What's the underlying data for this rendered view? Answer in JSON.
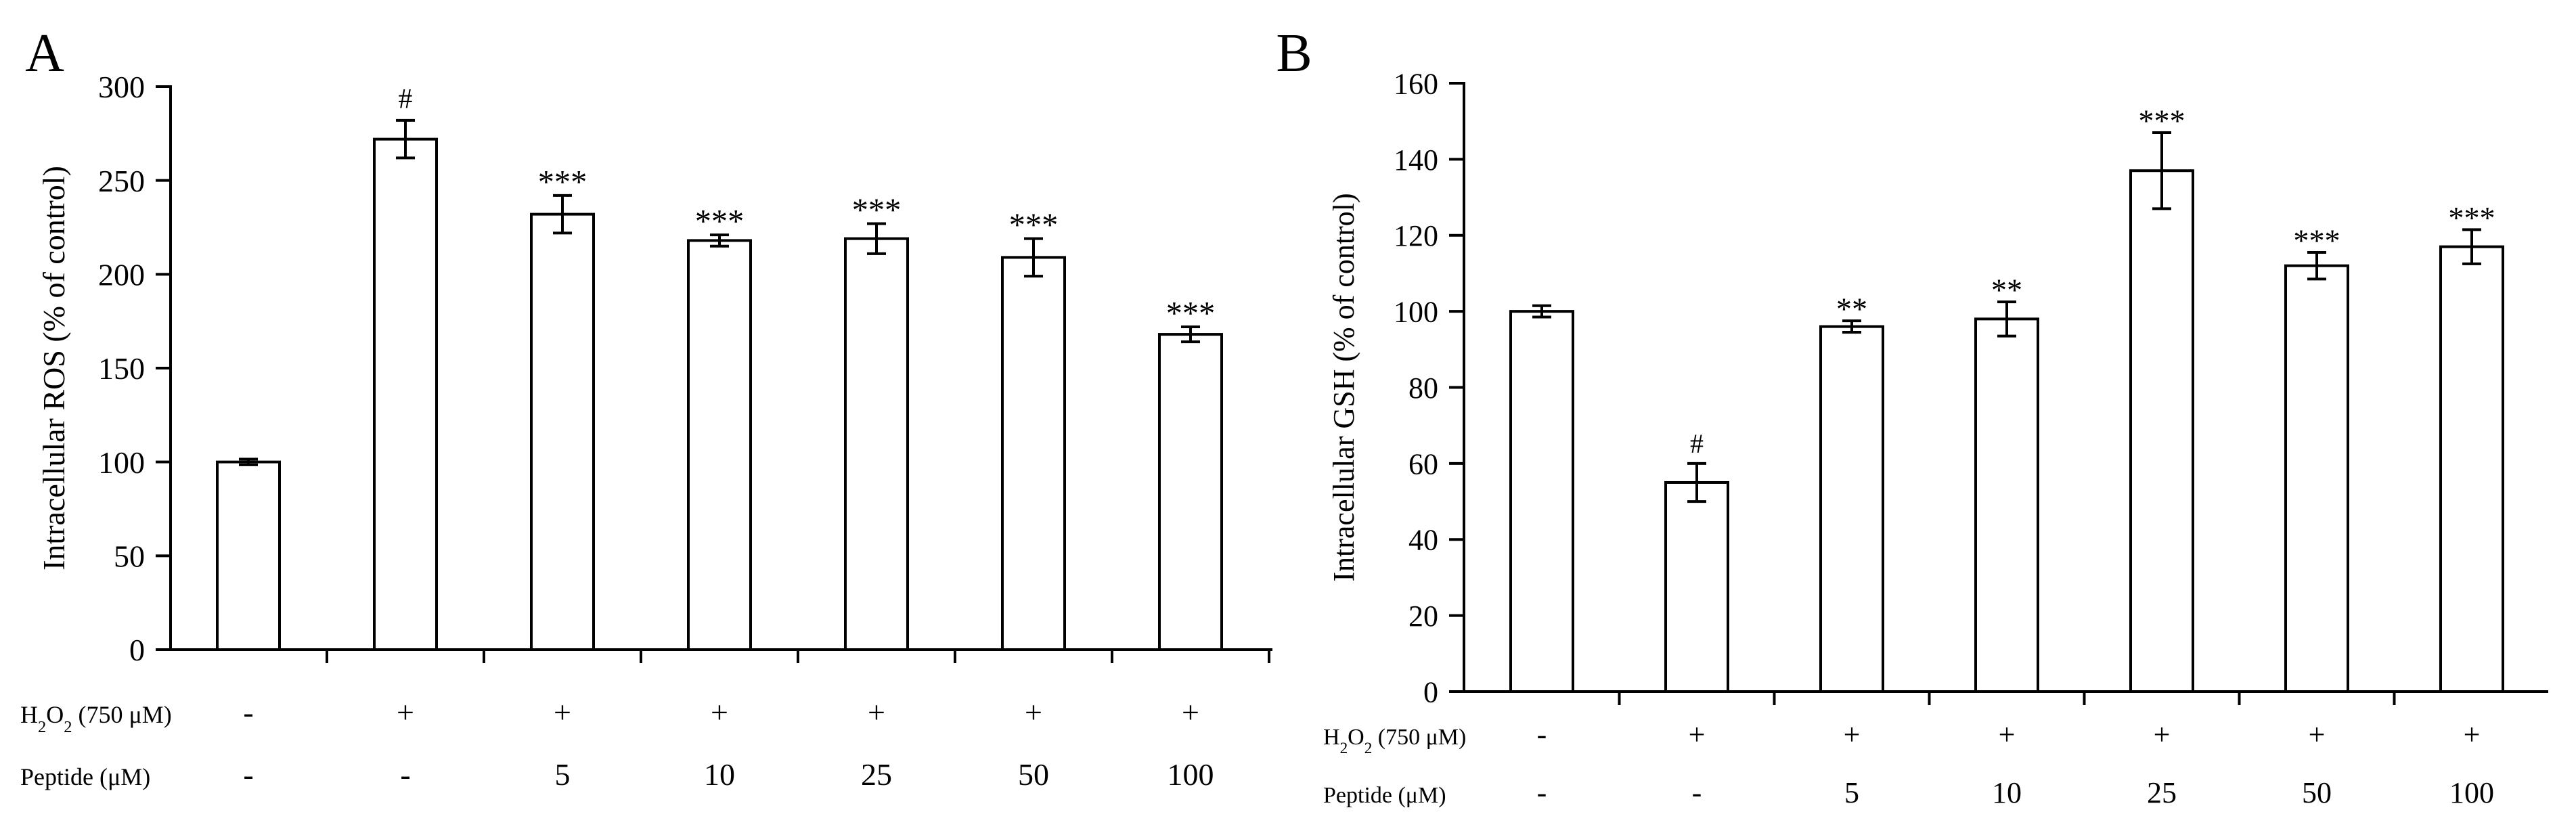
{
  "chart_data": [
    {
      "panel_label": "A",
      "type": "bar",
      "ylabel": "Intracellular ROS (% of control)",
      "ylim": [
        0,
        300
      ],
      "yticks": [
        0,
        50,
        100,
        150,
        200,
        250,
        300
      ],
      "values": [
        100,
        272,
        232,
        218,
        219,
        209,
        168
      ],
      "errors": [
        1.5,
        10,
        10,
        3,
        8,
        10,
        4
      ],
      "significance": [
        "",
        "#",
        "***",
        "***",
        "***",
        "***",
        "***"
      ],
      "rows": [
        {
          "label": "H2O2 (750 μM)",
          "values": [
            "-",
            "+",
            "+",
            "+",
            "+",
            "+",
            "+"
          ]
        },
        {
          "label": "Peptide (μM)",
          "values": [
            "-",
            "-",
            "5",
            "10",
            "25",
            "50",
            "100"
          ]
        }
      ]
    },
    {
      "panel_label": "B",
      "type": "bar",
      "ylabel": "Intracellular GSH (% of control)",
      "ylim": [
        0,
        160
      ],
      "yticks": [
        0,
        20,
        40,
        60,
        80,
        100,
        120,
        140,
        160
      ],
      "values": [
        100,
        55,
        96,
        98,
        137,
        112,
        117
      ],
      "errors": [
        1.5,
        5,
        1.5,
        4.5,
        10,
        3.5,
        4.5
      ],
      "significance": [
        "",
        "#",
        "**",
        "**",
        "***",
        "***",
        "***"
      ],
      "rows": [
        {
          "label": "H2O2 (750 μM)",
          "values": [
            "-",
            "+",
            "+",
            "+",
            "+",
            "+",
            "+"
          ]
        },
        {
          "label": "Peptide (μM)",
          "values": [
            "-",
            "-",
            "5",
            "10",
            "25",
            "50",
            "100"
          ]
        }
      ]
    }
  ]
}
